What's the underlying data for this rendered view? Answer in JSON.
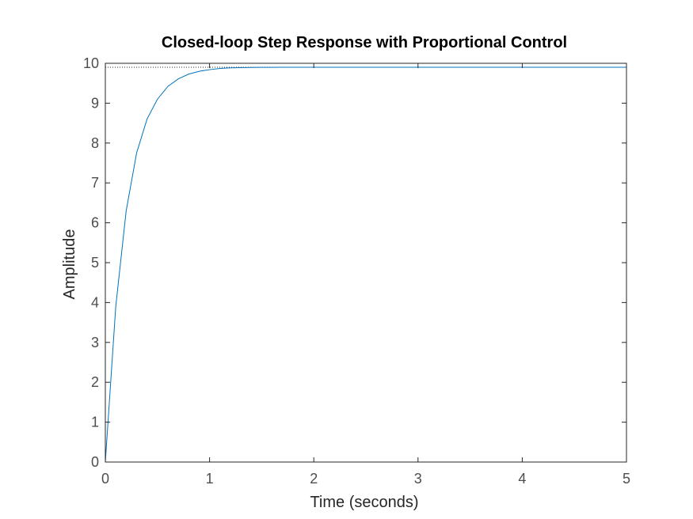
{
  "chart_data": {
    "type": "line",
    "title": "Closed-loop Step Response with Proportional Control",
    "xlabel": "Time (seconds)",
    "ylabel": "Amplitude",
    "xlim": [
      0,
      5
    ],
    "ylim": [
      0,
      10
    ],
    "xticks": [
      "0",
      "1",
      "2",
      "3",
      "4",
      "5"
    ],
    "yticks": [
      "0",
      "1",
      "2",
      "3",
      "4",
      "5",
      "6",
      "7",
      "8",
      "9",
      "10"
    ],
    "grid": false,
    "steady_state": 9.9,
    "series": [
      {
        "color": "#0072bd",
        "x": [
          0,
          0.1,
          0.2,
          0.3,
          0.4,
          0.5,
          0.6,
          0.7,
          0.8,
          0.9,
          1.0,
          1.1,
          1.2,
          1.3,
          1.4,
          1.5,
          1.6,
          1.7,
          1.8,
          2.0,
          2.5,
          3.0,
          3.5,
          4.0,
          4.5,
          5.0
        ],
        "y": [
          0,
          3.9,
          6.3,
          7.75,
          8.6,
          9.1,
          9.42,
          9.61,
          9.73,
          9.8,
          9.84,
          9.87,
          9.885,
          9.892,
          9.896,
          9.898,
          9.899,
          9.9,
          9.9,
          9.9,
          9.9,
          9.9,
          9.9,
          9.9,
          9.9,
          9.9
        ]
      }
    ]
  }
}
